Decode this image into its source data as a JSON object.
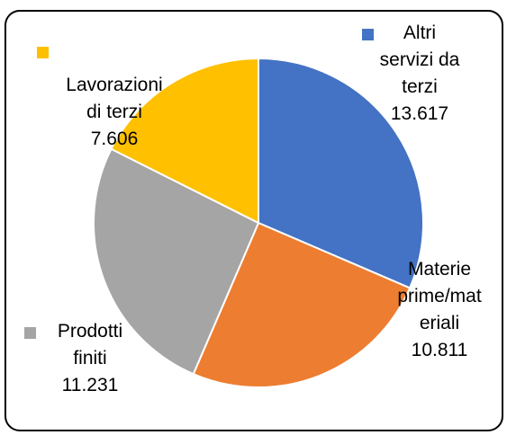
{
  "chart_data": {
    "type": "pie",
    "categories": [
      "Altri servizi da terzi",
      "Materie prime/materiali",
      "Prodotti finiti",
      "Lavorazioni di terzi"
    ],
    "values": [
      13617,
      10811,
      11231,
      7606
    ],
    "value_labels": [
      "13.617",
      "10.811",
      "11.231",
      "7.606"
    ],
    "colors": [
      "#4472c4",
      "#ed7d31",
      "#a5a5a5",
      "#ffc000"
    ]
  }
}
